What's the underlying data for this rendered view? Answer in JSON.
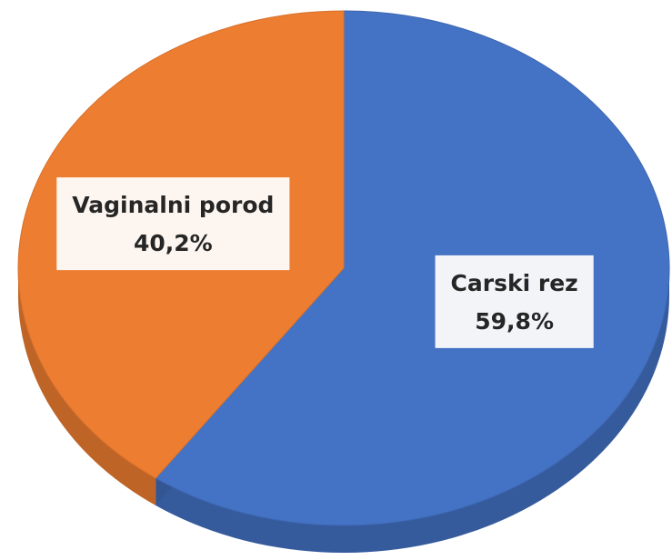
{
  "chart_data": {
    "type": "pie",
    "categories": [
      "Carski rez",
      "Vaginalni porod"
    ],
    "values": [
      59.8,
      40.2
    ],
    "value_labels": [
      "59,8%",
      "40,2%"
    ],
    "colors": [
      "#4472c4",
      "#ed7d31"
    ]
  }
}
